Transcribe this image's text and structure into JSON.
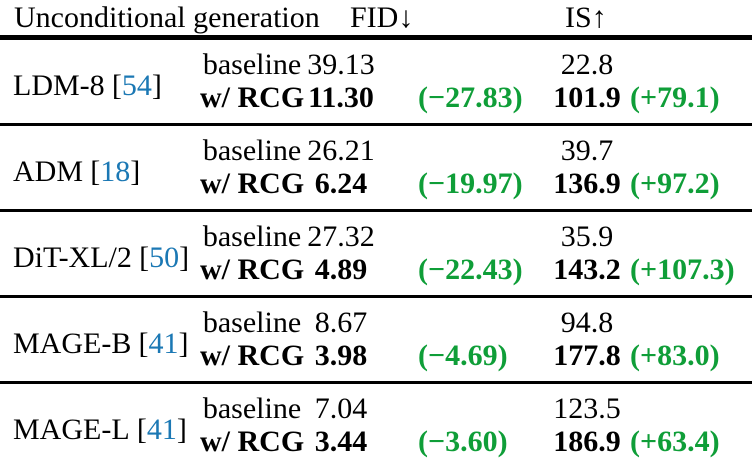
{
  "colors": {
    "delta_green": "#0f9e38",
    "cite_blue": "#1b78b4",
    "rule_black": "#000000"
  },
  "header": {
    "method_col": "Unconditional generation",
    "fid_col": "FID↓",
    "is_col": "IS↑"
  },
  "labels": {
    "baseline": "baseline",
    "rcg": "w/ RCG",
    "cite_open": "[",
    "cite_close": "]"
  },
  "sections": [
    {
      "method": "LDM-8",
      "cite": "54",
      "baseline_fid": "39.13",
      "baseline_is": "22.8",
      "rcg_fid": "11.30",
      "rcg_fid_delta": "(−27.83)",
      "rcg_is": "101.9",
      "rcg_is_delta": "(+79.1)"
    },
    {
      "method": "ADM",
      "cite": "18",
      "baseline_fid": "26.21",
      "baseline_is": "39.7",
      "rcg_fid": "6.24",
      "rcg_fid_delta": "(−19.97)",
      "rcg_is": "136.9",
      "rcg_is_delta": "(+97.2)"
    },
    {
      "method": "DiT-XL/2",
      "cite": "50",
      "baseline_fid": "27.32",
      "baseline_is": "35.9",
      "rcg_fid": "4.89",
      "rcg_fid_delta": "(−22.43)",
      "rcg_is": "143.2",
      "rcg_is_delta": "(+107.3)"
    },
    {
      "method": "MAGE-B",
      "cite": "41",
      "baseline_fid": "8.67",
      "baseline_is": "94.8",
      "rcg_fid": "3.98",
      "rcg_fid_delta": "(−4.69)",
      "rcg_is": "177.8",
      "rcg_is_delta": "(+83.0)"
    },
    {
      "method": "MAGE-L",
      "cite": "41",
      "baseline_fid": "7.04",
      "baseline_is": "123.5",
      "rcg_fid": "3.44",
      "rcg_fid_delta": "(−3.60)",
      "rcg_is": "186.9",
      "rcg_is_delta": "(+63.4)"
    }
  ]
}
